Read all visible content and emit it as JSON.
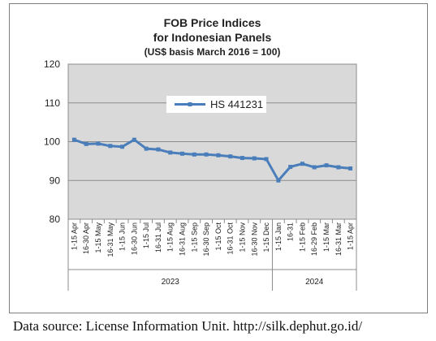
{
  "chart_data": {
    "type": "line",
    "title_lines": [
      "FOB Price Indices",
      "for Indonesian Panels",
      "(US$ basis March 2016 = 100)"
    ],
    "xlabel": "",
    "ylabel": "",
    "ylim": [
      80,
      120
    ],
    "yticks": [
      80,
      90,
      100,
      110,
      120
    ],
    "grid": true,
    "legend": "top-center",
    "categories": [
      "1-15 Apr",
      "16-30 Apr",
      "1-15 May",
      "16-31 May",
      "1-15 Jun",
      "16-30 Jun",
      "1-15 Jul",
      "16-31 Jul",
      "1-15 Aug",
      "16-31 Aug",
      "1-15 Sep",
      "16-30 Sep",
      "1-15 Oct",
      "16-31 Oct",
      "1-15 Nov",
      "16-30 Nov",
      "1-15 Dec",
      "1-15 Jan",
      "16-31",
      "1-15 Feb",
      "16-29 Feb",
      "1-15 Mar",
      "16-31 Mar",
      "1-15 Apr"
    ],
    "groups": [
      {
        "label": "2023",
        "start": 0,
        "end": 16
      },
      {
        "label": "2024",
        "start": 17,
        "end": 23
      }
    ],
    "series": [
      {
        "name": "HS 441231",
        "color": "#4a7ebb",
        "values": [
          100.5,
          99.4,
          99.5,
          98.9,
          98.7,
          100.5,
          98.2,
          98.0,
          97.2,
          96.9,
          96.7,
          96.7,
          96.5,
          96.2,
          95.8,
          95.7,
          95.5,
          90.0,
          93.5,
          94.3,
          93.4,
          93.9,
          93.4,
          93.1
        ]
      }
    ]
  },
  "source_note": "Data source: License Information Unit. http://silk.dephut.go.id/"
}
